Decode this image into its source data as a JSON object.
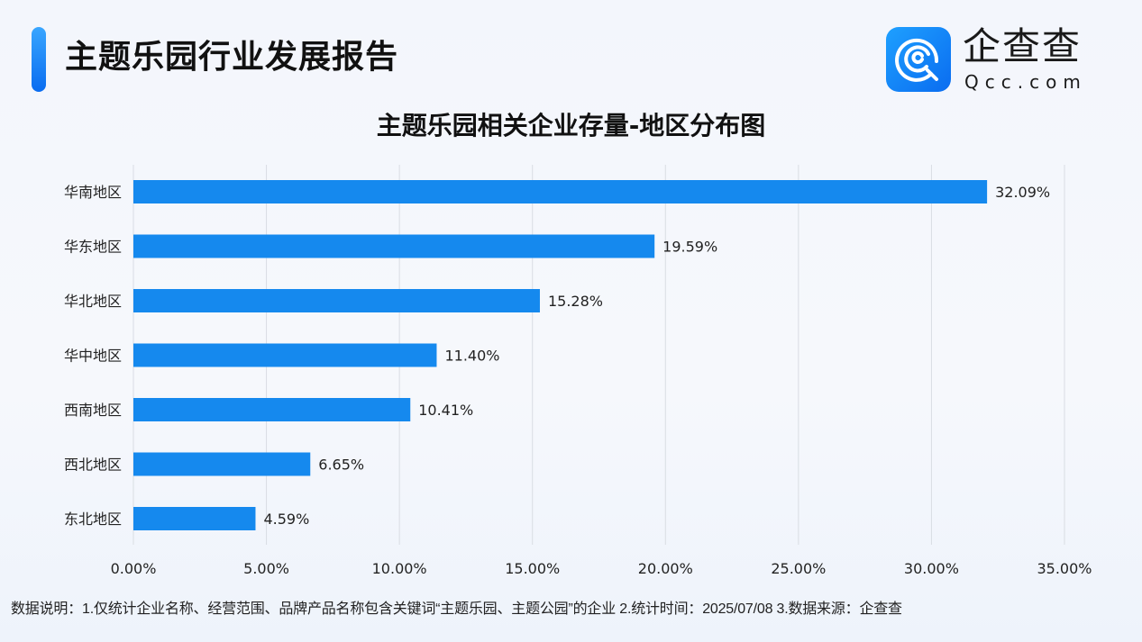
{
  "header": {
    "title": "主题乐园行业发展报告",
    "brand_name": "企查查",
    "brand_domain": "Qcc.com"
  },
  "chart_data": {
    "type": "bar",
    "orientation": "horizontal",
    "title": "主题乐园相关企业存量-地区分布图",
    "categories": [
      "华南地区",
      "华东地区",
      "华北地区",
      "华中地区",
      "西南地区",
      "西北地区",
      "东北地区"
    ],
    "values": [
      32.09,
      19.59,
      15.28,
      11.4,
      10.41,
      6.65,
      4.59
    ],
    "value_labels": [
      "32.09%",
      "19.59%",
      "15.28%",
      "11.40%",
      "10.41%",
      "6.65%",
      "4.59%"
    ],
    "xlim": [
      0,
      35
    ],
    "xticks": [
      0,
      5,
      10,
      15,
      20,
      25,
      30,
      35
    ],
    "xtick_labels": [
      "0.00%",
      "5.00%",
      "10.00%",
      "15.00%",
      "20.00%",
      "25.00%",
      "30.00%",
      "35.00%"
    ],
    "grid": true,
    "bar_color": "#1589ee",
    "xlabel": "",
    "ylabel": ""
  },
  "footer": {
    "note": "数据说明：1.仅统计企业名称、经营范围、品牌产品名称包含关键词“主题乐园、主题公园”的企业   2.统计时间：2025/07/08    3.数据来源：企查查"
  }
}
